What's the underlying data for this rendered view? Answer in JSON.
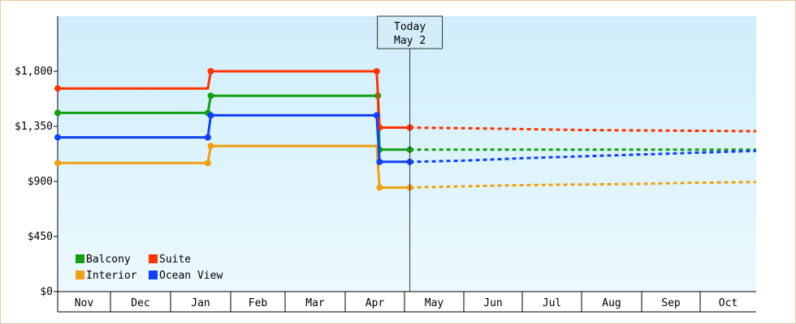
{
  "chart_data": {
    "type": "line",
    "title": "",
    "xlabel": "",
    "ylabel": "",
    "ylim": [
      0,
      2250
    ],
    "y_ticks": [
      {
        "value": 0,
        "label": "$0"
      },
      {
        "value": 450,
        "label": "$450"
      },
      {
        "value": 900,
        "label": "$900"
      },
      {
        "value": 1350,
        "label": "$1,350"
      },
      {
        "value": 1800,
        "label": "$1,800"
      }
    ],
    "months": [
      "Nov",
      "Dec",
      "Jan",
      "Feb",
      "Mar",
      "Apr",
      "May",
      "Jun",
      "Jul",
      "Aug",
      "Sep",
      "Oct"
    ],
    "today": {
      "line1": "Today",
      "line2": "May 2",
      "x": 6.05
    },
    "legend": [
      {
        "name": "Balcony",
        "color": "#10a010"
      },
      {
        "name": "Suite",
        "color": "#ff3300"
      },
      {
        "name": "Interior",
        "color": "#f0a010"
      },
      {
        "name": "Ocean View",
        "color": "#1040ff"
      }
    ],
    "series": [
      {
        "name": "Balcony",
        "color": "#10a010",
        "historical": [
          [
            0,
            1460
          ],
          [
            2.58,
            1460
          ],
          [
            2.63,
            1600
          ],
          [
            5.5,
            1600
          ],
          [
            5.53,
            1160
          ],
          [
            6.05,
            1160
          ]
        ],
        "markers": [
          [
            0,
            1460
          ],
          [
            2.58,
            1460
          ],
          [
            2.63,
            1600
          ],
          [
            5.5,
            1600
          ],
          [
            5.53,
            1160
          ],
          [
            6.05,
            1160
          ]
        ],
        "forecast": [
          [
            6.05,
            1160
          ],
          [
            12.4,
            1160
          ]
        ]
      },
      {
        "name": "Suite",
        "color": "#ff3300",
        "historical": [
          [
            0,
            1660
          ],
          [
            2.58,
            1660
          ],
          [
            2.63,
            1800
          ],
          [
            5.48,
            1800
          ],
          [
            5.53,
            1340
          ],
          [
            6.05,
            1340
          ]
        ],
        "markers": [
          [
            0,
            1660
          ],
          [
            2.63,
            1800
          ],
          [
            5.48,
            1800
          ],
          [
            5.53,
            1340
          ],
          [
            6.05,
            1340
          ]
        ],
        "forecast": [
          [
            6.05,
            1340
          ],
          [
            7.0,
            1335
          ],
          [
            9.0,
            1320
          ],
          [
            12.4,
            1310
          ]
        ]
      },
      {
        "name": "Interior",
        "color": "#f0a010",
        "historical": [
          [
            0,
            1050
          ],
          [
            2.58,
            1050
          ],
          [
            2.63,
            1190
          ],
          [
            5.48,
            1190
          ],
          [
            5.53,
            850
          ],
          [
            6.05,
            850
          ]
        ],
        "markers": [
          [
            0,
            1050
          ],
          [
            2.58,
            1050
          ],
          [
            2.63,
            1190
          ],
          [
            5.53,
            850
          ],
          [
            6.05,
            850
          ]
        ],
        "forecast": [
          [
            6.05,
            850
          ],
          [
            7.0,
            860
          ],
          [
            8.0,
            870
          ],
          [
            9.0,
            875
          ],
          [
            10.0,
            880
          ],
          [
            11.0,
            890
          ],
          [
            12.4,
            895
          ]
        ]
      },
      {
        "name": "Ocean View",
        "color": "#1040ff",
        "historical": [
          [
            0,
            1260
          ],
          [
            2.58,
            1260
          ],
          [
            2.63,
            1440
          ],
          [
            5.48,
            1440
          ],
          [
            5.53,
            1060
          ],
          [
            6.05,
            1060
          ]
        ],
        "markers": [
          [
            0,
            1260
          ],
          [
            2.58,
            1260
          ],
          [
            2.63,
            1440
          ],
          [
            5.48,
            1440
          ],
          [
            5.53,
            1060
          ],
          [
            6.05,
            1060
          ]
        ],
        "forecast": [
          [
            6.05,
            1060
          ],
          [
            7.0,
            1070
          ],
          [
            8.0,
            1090
          ],
          [
            9.0,
            1105
          ],
          [
            10.0,
            1120
          ],
          [
            11.0,
            1135
          ],
          [
            12.4,
            1150
          ]
        ]
      }
    ]
  }
}
